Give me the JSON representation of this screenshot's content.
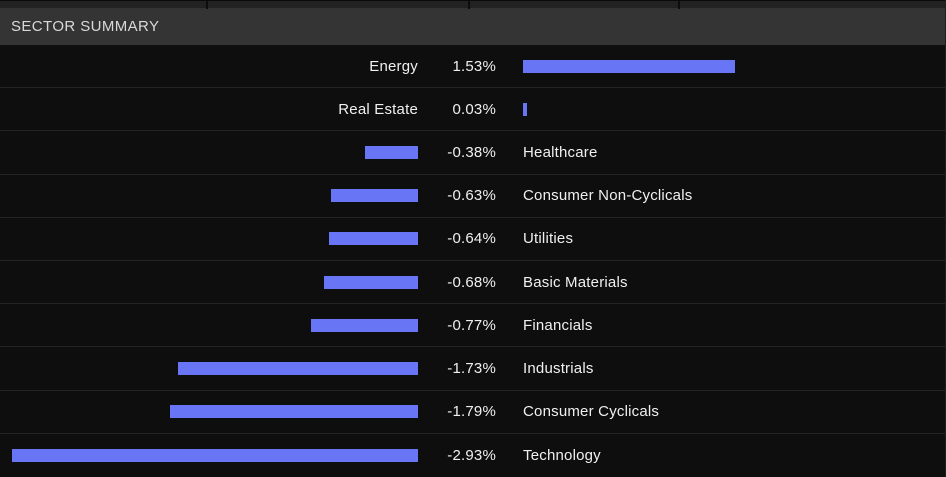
{
  "header": {
    "title": "SECTOR SUMMARY"
  },
  "colors": {
    "bar": "#6876f5",
    "header_background": "#343434",
    "row_background": "#0e0e0e",
    "row_separator": "#242424",
    "text": "#f0f0f0",
    "header_text": "#d9d9d9"
  },
  "chart_data": {
    "type": "bar",
    "orientation": "horizontal",
    "title": "SECTOR SUMMARY",
    "categories": [
      "Energy",
      "Real Estate",
      "Healthcare",
      "Consumer Non-Cyclicals",
      "Utilities",
      "Basic Materials",
      "Financials",
      "Industrials",
      "Consumer Cyclicals",
      "Technology"
    ],
    "values": [
      1.53,
      0.03,
      -0.38,
      -0.63,
      -0.64,
      -0.68,
      -0.77,
      -1.73,
      -1.79,
      -2.93
    ],
    "value_labels": [
      "1.53%",
      "0.03%",
      "-0.38%",
      "-0.63%",
      "-0.64%",
      "-0.68%",
      "-0.77%",
      "-1.73%",
      "-1.79%",
      "-2.93%"
    ],
    "unit": "%",
    "bar_color": "#6876f5",
    "sort_order": "descending",
    "legend": false,
    "grid": false,
    "layout_hint": "diverging bars around a central value column; positive bars grow right, negative bars grow left; labels sit opposite the bar"
  }
}
